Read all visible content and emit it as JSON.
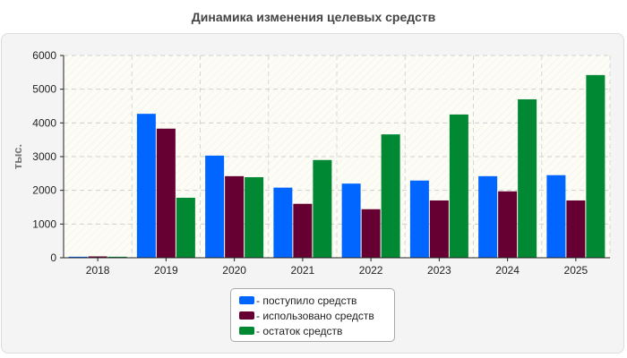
{
  "page": {
    "title": "Динамика изменения целевых средств"
  },
  "chart_data": {
    "type": "bar",
    "title": "Динамика изменения целевых средств",
    "xlabel": "",
    "ylabel": "тыс.",
    "ylim": [
      0,
      6000
    ],
    "yticks": [
      0,
      1000,
      2000,
      3000,
      4000,
      5000,
      6000
    ],
    "grid": true,
    "legend_position": "bottom",
    "categories": [
      "2018",
      "2019",
      "2020",
      "2021",
      "2022",
      "2023",
      "2024",
      "2025"
    ],
    "series": [
      {
        "name": "- поступило средств",
        "color": "#0066ff",
        "values": [
          30,
          4270,
          3030,
          2080,
          2200,
          2290,
          2420,
          2450
        ]
      },
      {
        "name": "- использовано средств",
        "color": "#660033",
        "values": [
          40,
          3830,
          2420,
          1600,
          1440,
          1700,
          1970,
          1700
        ]
      },
      {
        "name": "- остаток средств",
        "color": "#008833",
        "values": [
          30,
          1780,
          2390,
          2900,
          3660,
          4250,
          4700,
          5420
        ]
      }
    ]
  }
}
